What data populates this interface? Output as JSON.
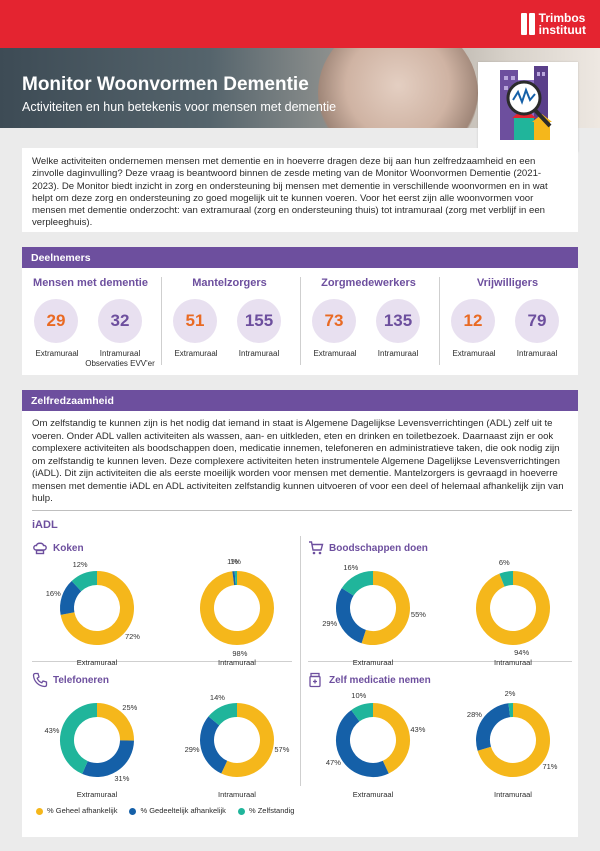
{
  "header": {
    "logo_line1": "Trimbos",
    "logo_line2": "instituut",
    "title": "Monitor Woonvormen Dementie",
    "subtitle": "Activiteiten en hun betekenis voor mensen met dementie"
  },
  "intro": "Welke activiteiten ondernemen mensen met dementie en in hoeverre dragen deze bij aan hun zelfredzaamheid en een zinvolle daginvulling? Deze vraag is beantwoord binnen de zesde meting van de Monitor Woonvormen Dementie (2021-2023). De Monitor biedt inzicht in zorg en ondersteuning bij mensen met dementie in verschillende woonvormen en in wat helpt om deze zorg en ondersteuning zo goed mogelijk uit te kunnen voeren. Voor het eerst zijn alle woonvormen voor mensen met dementie onderzocht: van extramuraal (zorg en ondersteuning thuis) tot intramuraal (zorg met verblijf in een verpleeghuis).",
  "deelnemers": {
    "title": "Deelnemers",
    "groups": [
      {
        "title": "Mensen met dementie",
        "a_value": "29",
        "a_label": "Extramuraal",
        "b_value": "32",
        "b_label": "Intramuraal Observaties EVV'er"
      },
      {
        "title": "Mantelzorgers",
        "a_value": "51",
        "a_label": "Extramuraal",
        "b_value": "155",
        "b_label": "Intramuraal"
      },
      {
        "title": "Zorgmedewerkers",
        "a_value": "73",
        "a_label": "Extramuraal",
        "b_value": "135",
        "b_label": "Intramuraal"
      },
      {
        "title": "Vrijwilligers",
        "a_value": "12",
        "a_label": "Extramuraal",
        "b_value": "79",
        "b_label": "Intramuraal"
      }
    ]
  },
  "zelfredzaamheid": {
    "title": "Zelfredzaamheid",
    "text": "Om zelfstandig te kunnen zijn is het nodig dat iemand in staat is Algemene Dagelijkse Levensverrichtingen (ADL) zelf uit te voeren. Onder ADL vallen activiteiten als wassen, aan- en uitkleden, eten en drinken en toiletbezoek. Daarnaast zijn er ook complexere activiteiten als boodschappen doen, medicatie innemen, telefoneren en administratieve taken, die ook nodig zijn om zelfstandig te kunnen leven. Deze complexere activiteiten heten instrumentele Algemene Dagelijkse Levensverrichtingen (iADL). Dit zijn activiteiten die als eerste moeilijk worden voor mensen met dementie. Mantelzorgers is gevraagd in hoeverre mensen met dementie iADL en ADL activiteiten zelfstandig kunnen uitvoeren of voor een deel of helemaal afhankelijk zijn van hulp.",
    "iadl_label": "iADL"
  },
  "colors": {
    "geheel": "#f5b71b",
    "gedeeltelijk": "#1560a8",
    "zelfstandig": "#20b59b",
    "purple": "#6d4f9e",
    "red": "#e42430"
  },
  "chart_data": {
    "type": "pie",
    "legend": [
      "% Geheel afhankelijk",
      "% Gedeeltelijk afhankelijk",
      "% Zelfstandig"
    ],
    "activities": [
      {
        "title": "Koken",
        "icon": "chef-hat-icon",
        "extramuraal": {
          "label": "Extramuraal",
          "values": [
            72,
            16,
            12
          ]
        },
        "intramuraal": {
          "label": "Intramuraal",
          "values": [
            98,
            1,
            1
          ]
        }
      },
      {
        "title": "Boodschappen doen",
        "icon": "shopping-cart-icon",
        "extramuraal": {
          "label": "Extramuraal",
          "values": [
            55,
            29,
            16
          ]
        },
        "intramuraal": {
          "label": "Intramuraal",
          "values": [
            94,
            0,
            6
          ]
        }
      },
      {
        "title": "Telefoneren",
        "icon": "phone-icon",
        "extramuraal": {
          "label": "Extramuraal",
          "values": [
            25,
            31,
            43
          ]
        },
        "intramuraal": {
          "label": "Intramuraal",
          "values": [
            57,
            29,
            14
          ]
        }
      },
      {
        "title": "Zelf medicatie nemen",
        "icon": "medication-icon",
        "extramuraal": {
          "label": "Extramuraal",
          "values": [
            43,
            47,
            10
          ]
        },
        "intramuraal": {
          "label": "Intramuraal",
          "values": [
            71,
            28,
            2
          ]
        }
      }
    ]
  }
}
